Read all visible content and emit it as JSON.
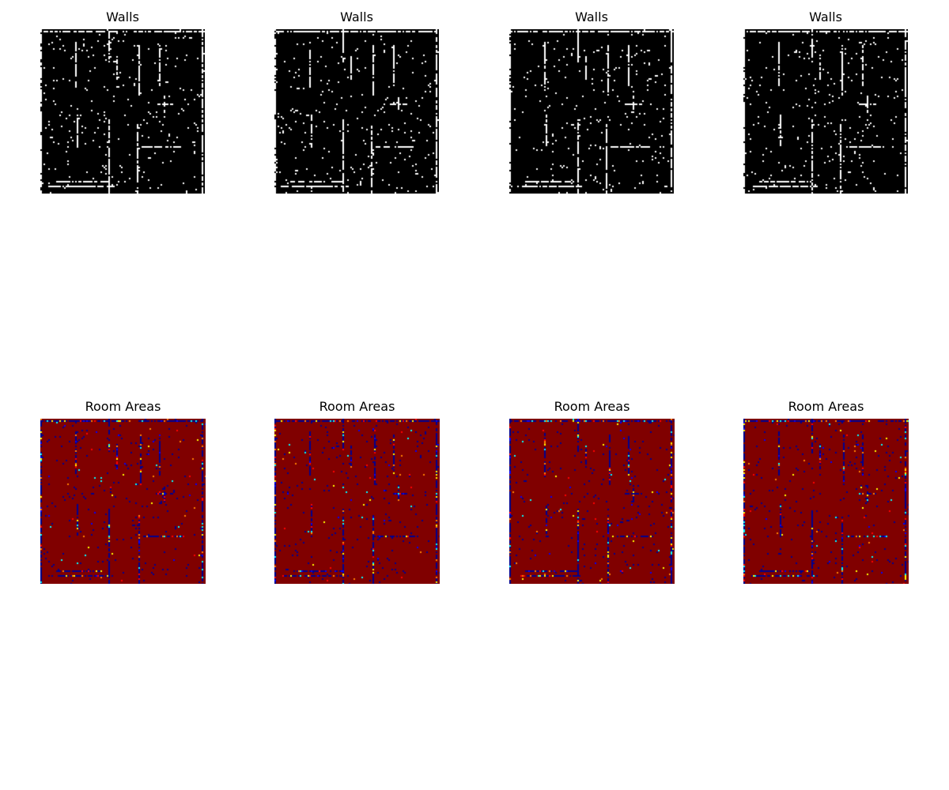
{
  "figure": {
    "rows": [
      {
        "panels": [
          {
            "title": "Walls",
            "colormap": "gray"
          },
          {
            "title": "Walls",
            "colormap": "gray"
          },
          {
            "title": "Walls",
            "colormap": "gray"
          },
          {
            "title": "Walls",
            "colormap": "gray"
          }
        ]
      },
      {
        "panels": [
          {
            "title": "Room Areas",
            "colormap": "jet"
          },
          {
            "title": "Room Areas",
            "colormap": "jet"
          },
          {
            "title": "Room Areas",
            "colormap": "jet"
          },
          {
            "title": "Room Areas",
            "colormap": "jet"
          }
        ]
      }
    ],
    "colors": {
      "walls_background": "#000000",
      "walls_foreground": "#ffffff",
      "rooms_background": "#800000",
      "rooms_wall": "#00008f",
      "page_background": "#ffffff"
    }
  }
}
